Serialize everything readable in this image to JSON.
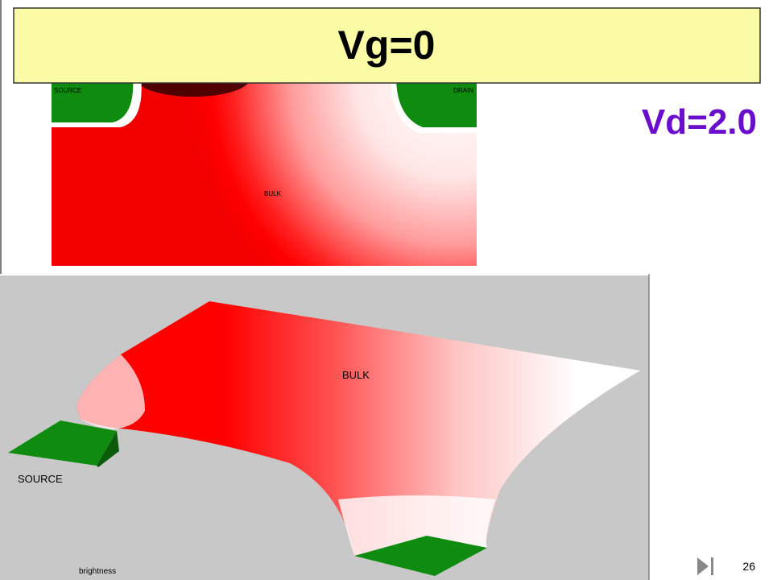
{
  "title": "Vg=0",
  "subtitle": "Vd=2.0",
  "top_view": {
    "source_label": "SOURCE",
    "drain_label": "DRAIN",
    "bulk_label": "BULK"
  },
  "surface_view": {
    "bulk_label": "BULK",
    "source_label": "SOURCE",
    "caption": "brightness"
  },
  "page_number": "26"
}
